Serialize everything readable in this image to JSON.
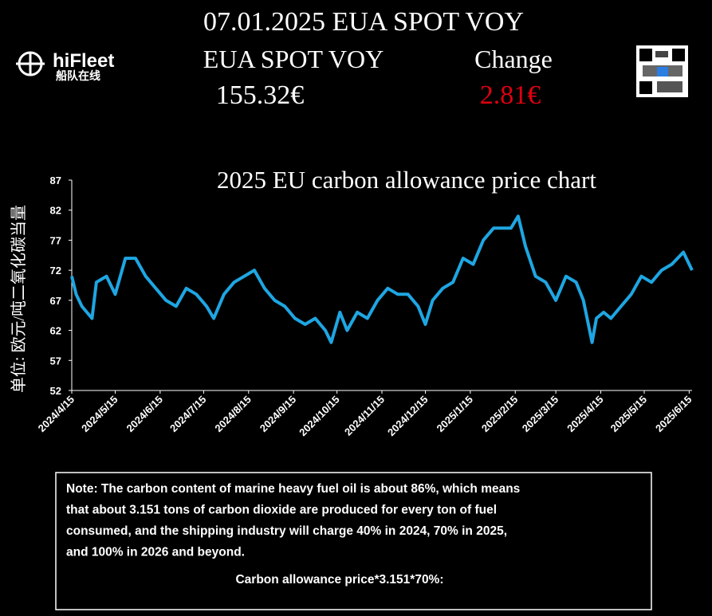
{
  "header": {
    "title": "07.01.2025 EUA SPOT VOY",
    "logo_text": "hiFleet",
    "logo_sub": "船队在线",
    "left_label": "EUA SPOT VOY",
    "left_value": "155.32€",
    "right_label": "Change",
    "right_value": "2.81€"
  },
  "chart_data": {
    "type": "line",
    "title": "2025 EU carbon allowance price chart",
    "y_label": "单位: 欧元/吨二氧化碳当量",
    "ylim": [
      52,
      87
    ],
    "yticks": [
      52,
      57,
      62,
      67,
      72,
      77,
      82,
      87
    ],
    "xlim": [
      "2024/4/15",
      "2025/6/17"
    ],
    "xticks": [
      "2024/4/15",
      "2024/5/15",
      "2024/6/15",
      "2024/7/15",
      "2024/8/15",
      "2024/9/15",
      "2024/10/15",
      "2024/11/15",
      "2024/12/15",
      "2025/1/15",
      "2025/2/15",
      "2025/3/15",
      "2025/4/15",
      "2025/5/15",
      "2025/6/15"
    ],
    "x": [
      "2024/4/15",
      "2024/4/18",
      "2024/4/22",
      "2024/4/29",
      "2024/5/2",
      "2024/5/9",
      "2024/5/15",
      "2024/5/22",
      "2024/5/29",
      "2024/6/5",
      "2024/6/12",
      "2024/6/19",
      "2024/6/26",
      "2024/7/3",
      "2024/7/10",
      "2024/7/17",
      "2024/7/22",
      "2024/7/29",
      "2024/8/5",
      "2024/8/12",
      "2024/8/19",
      "2024/8/26",
      "2024/9/2",
      "2024/9/9",
      "2024/9/16",
      "2024/9/23",
      "2024/9/30",
      "2024/10/7",
      "2024/10/11",
      "2024/10/17",
      "2024/10/22",
      "2024/10/29",
      "2024/11/5",
      "2024/11/12",
      "2024/11/19",
      "2024/11/26",
      "2024/12/3",
      "2024/12/10",
      "2024/12/15",
      "2024/12/20",
      "2024/12/27",
      "2025/1/3",
      "2025/1/10",
      "2025/1/17",
      "2025/1/24",
      "2025/1/31",
      "2025/2/7",
      "2025/2/12",
      "2025/2/17",
      "2025/2/22",
      "2025/3/1",
      "2025/3/8",
      "2025/3/15",
      "2025/3/22",
      "2025/3/29",
      "2025/4/3",
      "2025/4/9",
      "2025/4/12",
      "2025/4/17",
      "2025/4/22",
      "2025/4/29",
      "2025/5/6",
      "2025/5/13",
      "2025/5/20",
      "2025/5/27",
      "2025/6/3",
      "2025/6/11",
      "2025/6/17"
    ],
    "series": [
      {
        "color": "#1ea6e2",
        "values": [
          71,
          68,
          66,
          64,
          70,
          71,
          68,
          74,
          74,
          71,
          69,
          67,
          66,
          69,
          68,
          66,
          64,
          68,
          70,
          71,
          72,
          69,
          67,
          66,
          64,
          63,
          64,
          62,
          60,
          65,
          62,
          65,
          64,
          67,
          69,
          68,
          68,
          66,
          63,
          67,
          69,
          70,
          74,
          73,
          77,
          79,
          79,
          79,
          81,
          76,
          71,
          70,
          67,
          71,
          70,
          67,
          60,
          64,
          65,
          64,
          66,
          68,
          71,
          70,
          72,
          73,
          75,
          72
        ]
      }
    ]
  },
  "note": {
    "lines": [
      "Note: The carbon content of marine heavy fuel oil is about 86%, which means",
      "that about 3.151 tons of carbon dioxide are produced for every ton of fuel",
      "consumed, and the shipping industry will charge 40% in 2024, 70% in 2025,",
      "and 100% in 2026 and beyond."
    ],
    "formula": "Carbon allowance price*3.151*70%:"
  }
}
